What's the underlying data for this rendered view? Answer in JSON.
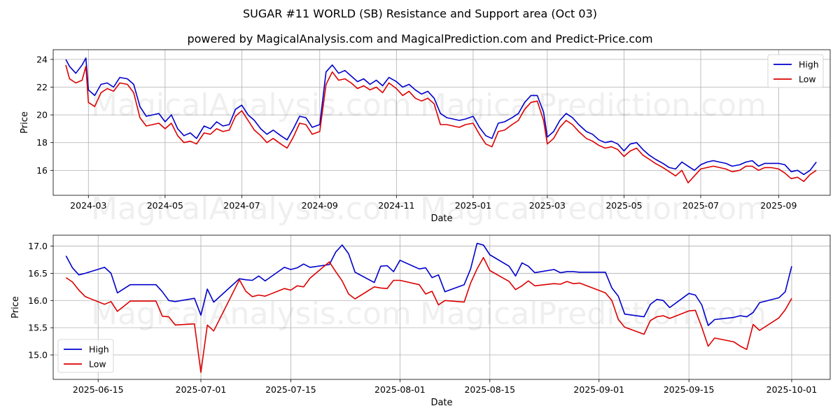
{
  "title": "SUGAR #11 WORLD (SB) Resistance and Support area (Oct 03)",
  "subtitle": "powered by MagicalAnalysis.com and MagicalPrediction.com and Predict-Price.com",
  "watermarks": [
    "MagicalAnalysis.com",
    "MagicalPrediction.com"
  ],
  "chart_data": [
    {
      "type": "line",
      "xlabel": "Date",
      "ylabel": "Price",
      "xlim": [
        "2024-02-02",
        "2025-10-12"
      ],
      "ylim": [
        14.2,
        24.7
      ],
      "x_ticks": [
        "2024-03",
        "2024-05",
        "2024-07",
        "2024-09",
        "2024-11",
        "2025-01",
        "2025-03",
        "2025-05",
        "2025-07",
        "2025-09"
      ],
      "y_ticks": [
        16,
        18,
        20,
        22,
        24
      ],
      "grid": true,
      "legend": "upper right",
      "x": [
        "2024-02-12",
        "2024-02-15",
        "2024-02-20",
        "2024-02-25",
        "2024-02-28",
        "2024-03-01",
        "2024-03-06",
        "2024-03-11",
        "2024-03-16",
        "2024-03-21",
        "2024-03-26",
        "2024-04-01",
        "2024-04-06",
        "2024-04-11",
        "2024-04-16",
        "2024-04-21",
        "2024-04-26",
        "2024-05-01",
        "2024-05-06",
        "2024-05-11",
        "2024-05-16",
        "2024-05-21",
        "2024-05-26",
        "2024-06-01",
        "2024-06-06",
        "2024-06-11",
        "2024-06-16",
        "2024-06-21",
        "2024-06-26",
        "2024-07-01",
        "2024-07-06",
        "2024-07-11",
        "2024-07-16",
        "2024-07-21",
        "2024-07-26",
        "2024-08-01",
        "2024-08-06",
        "2024-08-11",
        "2024-08-16",
        "2024-08-21",
        "2024-08-26",
        "2024-09-01",
        "2024-09-06",
        "2024-09-11",
        "2024-09-16",
        "2024-09-21",
        "2024-09-26",
        "2024-10-01",
        "2024-10-06",
        "2024-10-11",
        "2024-10-16",
        "2024-10-21",
        "2024-10-26",
        "2024-11-01",
        "2024-11-06",
        "2024-11-11",
        "2024-11-16",
        "2024-11-21",
        "2024-11-26",
        "2024-12-01",
        "2024-12-06",
        "2024-12-11",
        "2024-12-16",
        "2024-12-21",
        "2024-12-26",
        "2025-01-01",
        "2025-01-06",
        "2025-01-11",
        "2025-01-16",
        "2025-01-21",
        "2025-01-26",
        "2025-02-01",
        "2025-02-06",
        "2025-02-11",
        "2025-02-16",
        "2025-02-21",
        "2025-02-26",
        "2025-03-01",
        "2025-03-06",
        "2025-03-11",
        "2025-03-16",
        "2025-03-21",
        "2025-03-26",
        "2025-04-01",
        "2025-04-06",
        "2025-04-11",
        "2025-04-16",
        "2025-04-21",
        "2025-04-26",
        "2025-05-01",
        "2025-05-06",
        "2025-05-11",
        "2025-05-16",
        "2025-05-21",
        "2025-05-26",
        "2025-06-01",
        "2025-06-06",
        "2025-06-11",
        "2025-06-16",
        "2025-06-21",
        "2025-06-26",
        "2025-07-01",
        "2025-07-06",
        "2025-07-11",
        "2025-07-16",
        "2025-07-21",
        "2025-07-26",
        "2025-08-01",
        "2025-08-06",
        "2025-08-11",
        "2025-08-16",
        "2025-08-21",
        "2025-08-26",
        "2025-09-01",
        "2025-09-06",
        "2025-09-11",
        "2025-09-16",
        "2025-09-21",
        "2025-09-26",
        "2025-10-01"
      ],
      "series": [
        {
          "name": "High",
          "color": "#0000cc",
          "values": [
            24.0,
            23.5,
            23.0,
            23.6,
            24.1,
            21.8,
            21.4,
            22.2,
            22.3,
            22.0,
            22.7,
            22.6,
            22.2,
            20.6,
            19.9,
            20.0,
            20.1,
            19.5,
            20.0,
            19.0,
            18.5,
            18.7,
            18.3,
            19.2,
            19.0,
            19.5,
            19.2,
            19.3,
            20.4,
            20.7,
            20.0,
            19.6,
            19.0,
            18.6,
            18.9,
            18.5,
            18.2,
            19.0,
            19.9,
            19.8,
            19.1,
            19.3,
            23.1,
            23.6,
            23.0,
            23.2,
            22.8,
            22.4,
            22.6,
            22.2,
            22.5,
            22.1,
            22.7,
            22.4,
            22.0,
            22.2,
            21.8,
            21.5,
            21.7,
            21.2,
            20.1,
            19.8,
            19.7,
            19.6,
            19.7,
            19.9,
            19.1,
            18.5,
            18.3,
            19.4,
            19.5,
            19.8,
            20.1,
            20.9,
            21.4,
            21.4,
            20.2,
            18.4,
            18.8,
            19.6,
            20.1,
            19.8,
            19.3,
            18.8,
            18.6,
            18.2,
            18.0,
            18.1,
            17.9,
            17.4,
            17.9,
            18.0,
            17.5,
            17.1,
            16.8,
            16.5,
            16.2,
            16.1,
            16.6,
            16.3,
            16.0,
            16.4,
            16.6,
            16.7,
            16.6,
            16.5,
            16.3,
            16.4,
            16.6,
            16.7,
            16.3,
            16.5,
            16.5,
            16.5,
            16.4,
            15.9,
            16.0,
            15.7,
            16.0,
            16.6
          ]
        },
        {
          "name": "Low",
          "color": "#dd0000",
          "values": [
            23.6,
            22.6,
            22.3,
            22.5,
            23.5,
            20.9,
            20.6,
            21.6,
            21.9,
            21.7,
            22.3,
            22.2,
            21.6,
            19.8,
            19.2,
            19.3,
            19.4,
            19.0,
            19.4,
            18.5,
            18.0,
            18.1,
            17.9,
            18.7,
            18.6,
            19.0,
            18.8,
            18.9,
            19.9,
            20.3,
            19.6,
            18.9,
            18.5,
            18.0,
            18.3,
            17.9,
            17.6,
            18.4,
            19.4,
            19.3,
            18.6,
            18.8,
            22.2,
            23.1,
            22.5,
            22.6,
            22.3,
            21.9,
            22.1,
            21.8,
            22.0,
            21.6,
            22.3,
            21.9,
            21.4,
            21.7,
            21.2,
            21.0,
            21.2,
            20.8,
            19.3,
            19.3,
            19.2,
            19.1,
            19.3,
            19.4,
            18.6,
            17.9,
            17.7,
            18.8,
            18.9,
            19.3,
            19.6,
            20.4,
            20.9,
            21.0,
            19.6,
            17.9,
            18.3,
            19.1,
            19.6,
            19.3,
            18.8,
            18.3,
            18.1,
            17.8,
            17.6,
            17.7,
            17.5,
            17.0,
            17.4,
            17.6,
            17.1,
            16.8,
            16.5,
            16.2,
            15.9,
            15.6,
            16.0,
            15.1,
            15.6,
            16.1,
            16.2,
            16.3,
            16.2,
            16.1,
            15.9,
            16.0,
            16.3,
            16.3,
            16.0,
            16.2,
            16.2,
            16.1,
            15.8,
            15.4,
            15.5,
            15.2,
            15.7,
            16.0
          ]
        }
      ]
    },
    {
      "type": "line",
      "xlabel": "Date",
      "ylabel": "Price",
      "xlim": [
        "2025-06-08",
        "2025-10-07"
      ],
      "ylim": [
        14.55,
        17.2
      ],
      "x_ticks": [
        "2025-06-15",
        "2025-07-01",
        "2025-07-15",
        "2025-08-01",
        "2025-08-15",
        "2025-09-01",
        "2025-09-15",
        "2025-10-01"
      ],
      "y_ticks": [
        15.0,
        15.5,
        16.0,
        16.5,
        17.0
      ],
      "grid": true,
      "legend": "lower left",
      "x": [
        "2025-06-10",
        "2025-06-11",
        "2025-06-12",
        "2025-06-13",
        "2025-06-16",
        "2025-06-17",
        "2025-06-18",
        "2025-06-20",
        "2025-06-23",
        "2025-06-24",
        "2025-06-25",
        "2025-06-26",
        "2025-06-27",
        "2025-06-30",
        "2025-07-01",
        "2025-07-02",
        "2025-07-03",
        "2025-07-07",
        "2025-07-08",
        "2025-07-09",
        "2025-07-10",
        "2025-07-11",
        "2025-07-14",
        "2025-07-15",
        "2025-07-16",
        "2025-07-17",
        "2025-07-18",
        "2025-07-21",
        "2025-07-22",
        "2025-07-23",
        "2025-07-24",
        "2025-07-25",
        "2025-07-28",
        "2025-07-29",
        "2025-07-30",
        "2025-07-31",
        "2025-08-01",
        "2025-08-04",
        "2025-08-05",
        "2025-08-06",
        "2025-08-07",
        "2025-08-08",
        "2025-08-11",
        "2025-08-12",
        "2025-08-13",
        "2025-08-14",
        "2025-08-15",
        "2025-08-18",
        "2025-08-19",
        "2025-08-20",
        "2025-08-21",
        "2025-08-22",
        "2025-08-25",
        "2025-08-26",
        "2025-08-27",
        "2025-08-28",
        "2025-08-29",
        "2025-09-02",
        "2025-09-03",
        "2025-09-04",
        "2025-09-05",
        "2025-09-08",
        "2025-09-09",
        "2025-09-10",
        "2025-09-11",
        "2025-09-12",
        "2025-09-15",
        "2025-09-16",
        "2025-09-17",
        "2025-09-18",
        "2025-09-19",
        "2025-09-22",
        "2025-09-23",
        "2025-09-24",
        "2025-09-25",
        "2025-09-26",
        "2025-09-29",
        "2025-09-30",
        "2025-10-01"
      ],
      "series": [
        {
          "name": "High",
          "color": "#0000cc",
          "values": [
            16.82,
            16.6,
            16.47,
            16.5,
            16.61,
            16.5,
            16.14,
            16.29,
            16.29,
            16.29,
            16.16,
            16.0,
            15.98,
            16.04,
            15.73,
            16.21,
            15.97,
            16.4,
            16.38,
            16.37,
            16.45,
            16.36,
            16.61,
            16.57,
            16.6,
            16.67,
            16.61,
            16.66,
            16.89,
            17.02,
            16.86,
            16.52,
            16.33,
            16.63,
            16.64,
            16.53,
            16.74,
            16.58,
            16.6,
            16.42,
            16.47,
            16.16,
            16.29,
            16.58,
            17.05,
            17.02,
            16.84,
            16.63,
            16.45,
            16.69,
            16.63,
            16.51,
            16.57,
            16.51,
            16.53,
            16.53,
            16.52,
            16.52,
            16.23,
            16.08,
            15.75,
            15.7,
            15.93,
            16.02,
            16.0,
            15.87,
            16.13,
            16.1,
            15.92,
            15.54,
            15.65,
            15.69,
            15.72,
            15.7,
            15.78,
            15.96,
            16.05,
            16.16,
            16.63
          ]
        },
        {
          "name": "Low",
          "color": "#dd0000",
          "values": [
            16.42,
            16.34,
            16.19,
            16.07,
            15.93,
            15.98,
            15.8,
            15.99,
            15.99,
            15.99,
            15.71,
            15.7,
            15.55,
            15.57,
            14.68,
            15.55,
            15.44,
            16.38,
            16.17,
            16.07,
            16.1,
            16.08,
            16.22,
            16.19,
            16.27,
            16.25,
            16.41,
            16.71,
            16.53,
            16.36,
            16.12,
            16.03,
            16.25,
            16.23,
            16.22,
            16.37,
            16.37,
            16.29,
            16.12,
            16.17,
            15.92,
            16.0,
            15.97,
            16.32,
            16.58,
            16.79,
            16.55,
            16.35,
            16.2,
            16.27,
            16.36,
            16.27,
            16.31,
            16.3,
            16.35,
            16.31,
            16.32,
            16.14,
            16.0,
            15.65,
            15.51,
            15.38,
            15.63,
            15.7,
            15.72,
            15.67,
            15.81,
            15.82,
            15.51,
            15.16,
            15.31,
            15.24,
            15.16,
            15.1,
            15.56,
            15.45,
            15.68,
            15.83,
            16.04
          ]
        }
      ]
    }
  ]
}
